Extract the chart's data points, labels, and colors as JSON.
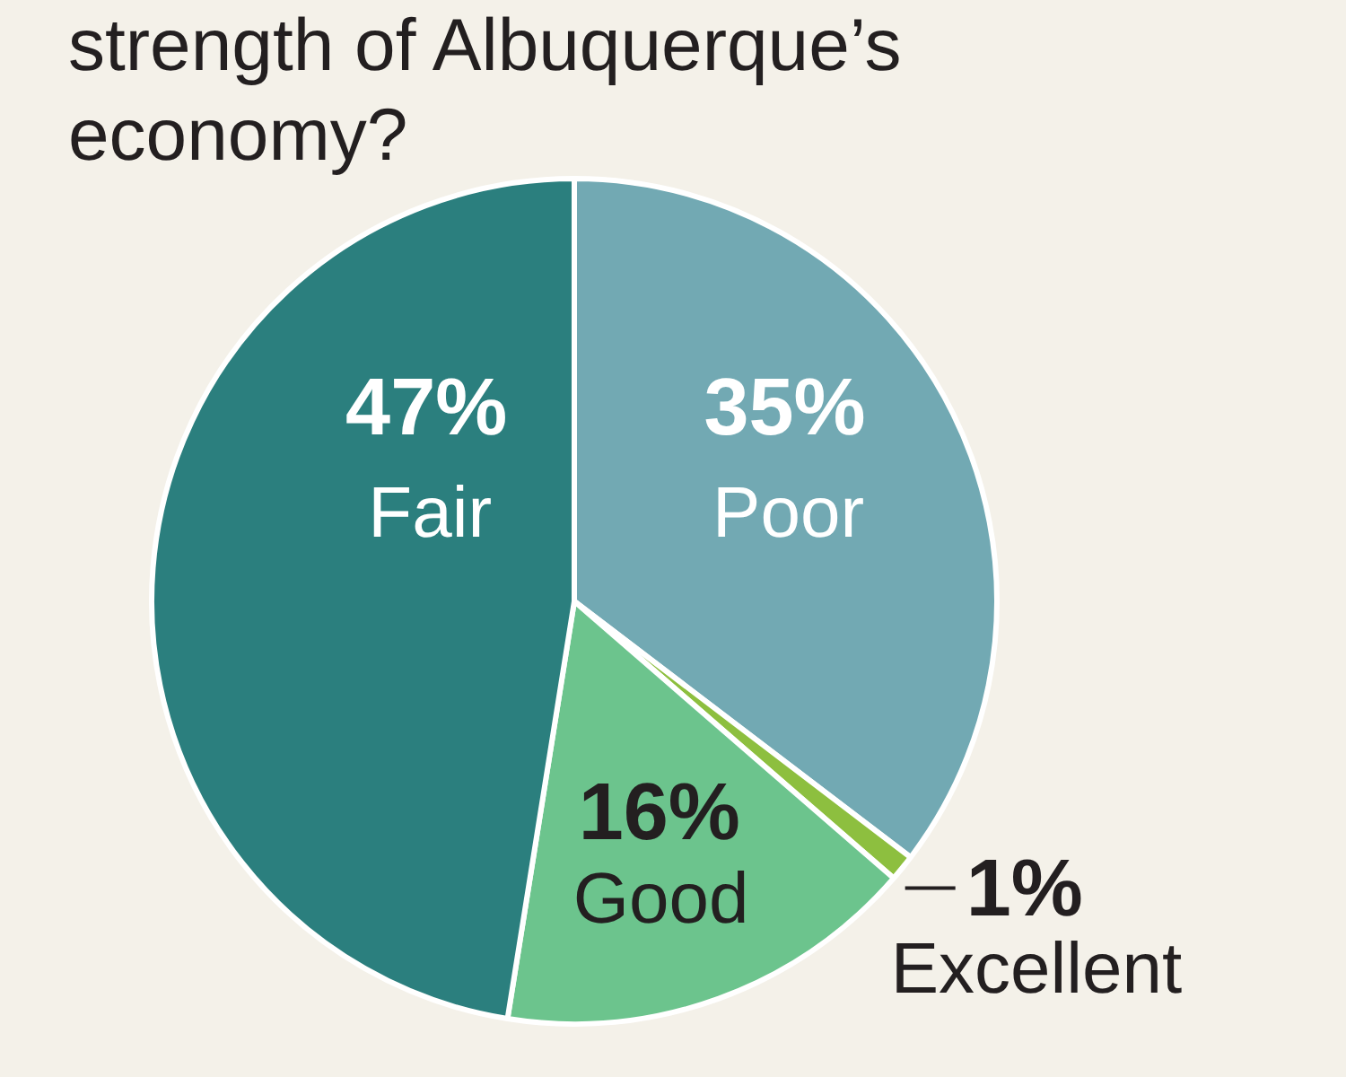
{
  "chart_data": {
    "type": "pie",
    "title": "strength of Albuquerque’s economy?",
    "categories": [
      "Poor",
      "Excellent",
      "Good",
      "Fair"
    ],
    "values": [
      35,
      1,
      16,
      47
    ],
    "colors": [
      "#72a9b3",
      "#8dbf3f",
      "#6cc48d",
      "#2b7f7e"
    ],
    "value_labels": [
      "35%",
      "1%",
      "16%",
      "47%"
    ]
  }
}
